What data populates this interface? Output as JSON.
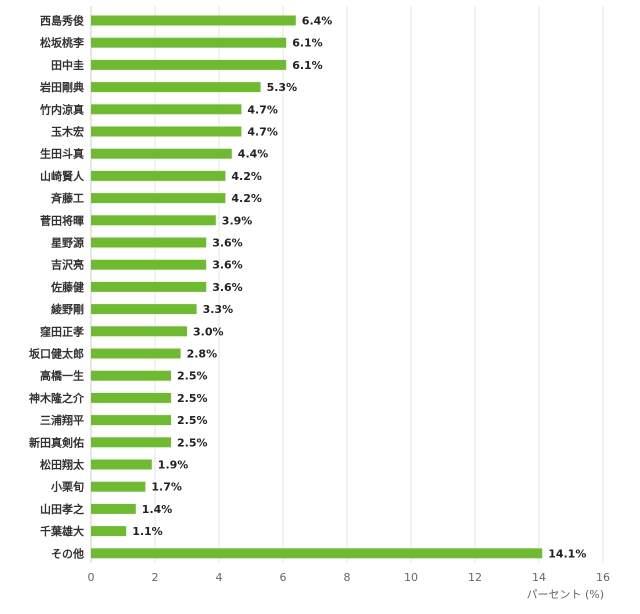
{
  "chart_data": {
    "type": "bar",
    "orientation": "horizontal",
    "categories": [
      "西島秀俊",
      "松坂桃李",
      "田中圭",
      "岩田剛典",
      "竹内涼真",
      "玉木宏",
      "生田斗真",
      "山崎賢人",
      "斉藤工",
      "菅田将暉",
      "星野源",
      "吉沢亮",
      "佐藤健",
      "綾野剛",
      "窪田正孝",
      "坂口健太郎",
      "高橋一生",
      "神木隆之介",
      "三浦翔平",
      "新田真剣佑",
      "松田翔太",
      "小栗旬",
      "山田孝之",
      "千葉雄大",
      "その他"
    ],
    "values": [
      6.4,
      6.1,
      6.1,
      5.3,
      4.7,
      4.7,
      4.4,
      4.2,
      4.2,
      3.9,
      3.6,
      3.6,
      3.6,
      3.3,
      3.0,
      2.8,
      2.5,
      2.5,
      2.5,
      2.5,
      1.9,
      1.7,
      1.4,
      1.1,
      14.1
    ],
    "value_labels": [
      "6.4%",
      "6.1%",
      "6.1%",
      "5.3%",
      "4.7%",
      "4.7%",
      "4.4%",
      "4.2%",
      "4.2%",
      "3.9%",
      "3.6%",
      "3.6%",
      "3.6%",
      "3.3%",
      "3.0%",
      "2.8%",
      "2.5%",
      "2.5%",
      "2.5%",
      "2.5%",
      "1.9%",
      "1.7%",
      "1.4%",
      "1.1%",
      "14.1%"
    ],
    "xticks": [
      "0",
      "2",
      "4",
      "6",
      "8",
      "10",
      "12",
      "14",
      "16"
    ],
    "xlim": [
      0,
      16
    ],
    "xlabel": "パーセント (%)",
    "grid": true,
    "colors": {
      "bar": "#6fbb2f",
      "grid": "#e6e6e6",
      "axis": "#cccccc"
    }
  }
}
